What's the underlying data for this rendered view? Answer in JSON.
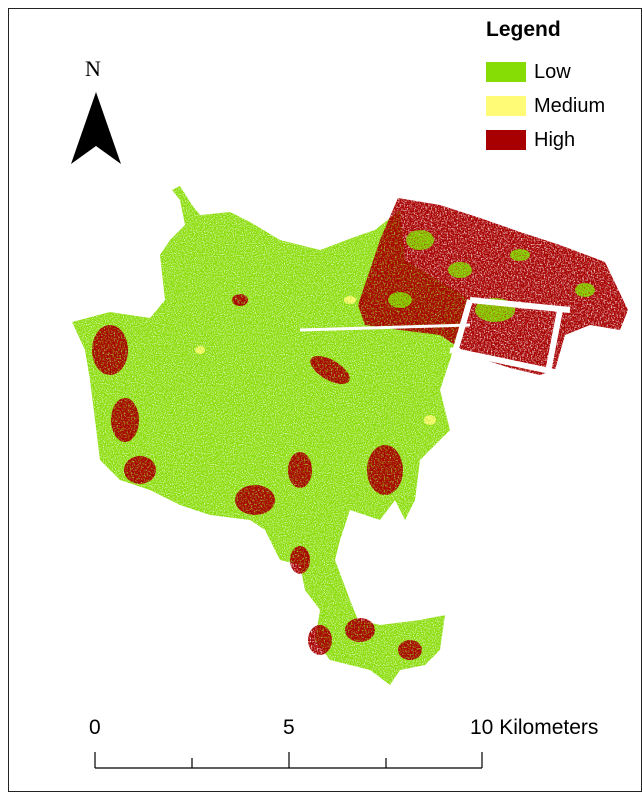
{
  "legend": {
    "title": "Legend",
    "items": [
      {
        "label": "Low",
        "color": "#86dc05"
      },
      {
        "label": "Medium",
        "color": "#fffb76"
      },
      {
        "label": "High",
        "color": "#a80000"
      }
    ]
  },
  "north_arrow": {
    "label": "N"
  },
  "scale_bar": {
    "labels": [
      "0",
      "5",
      "10 Kilometers"
    ]
  }
}
